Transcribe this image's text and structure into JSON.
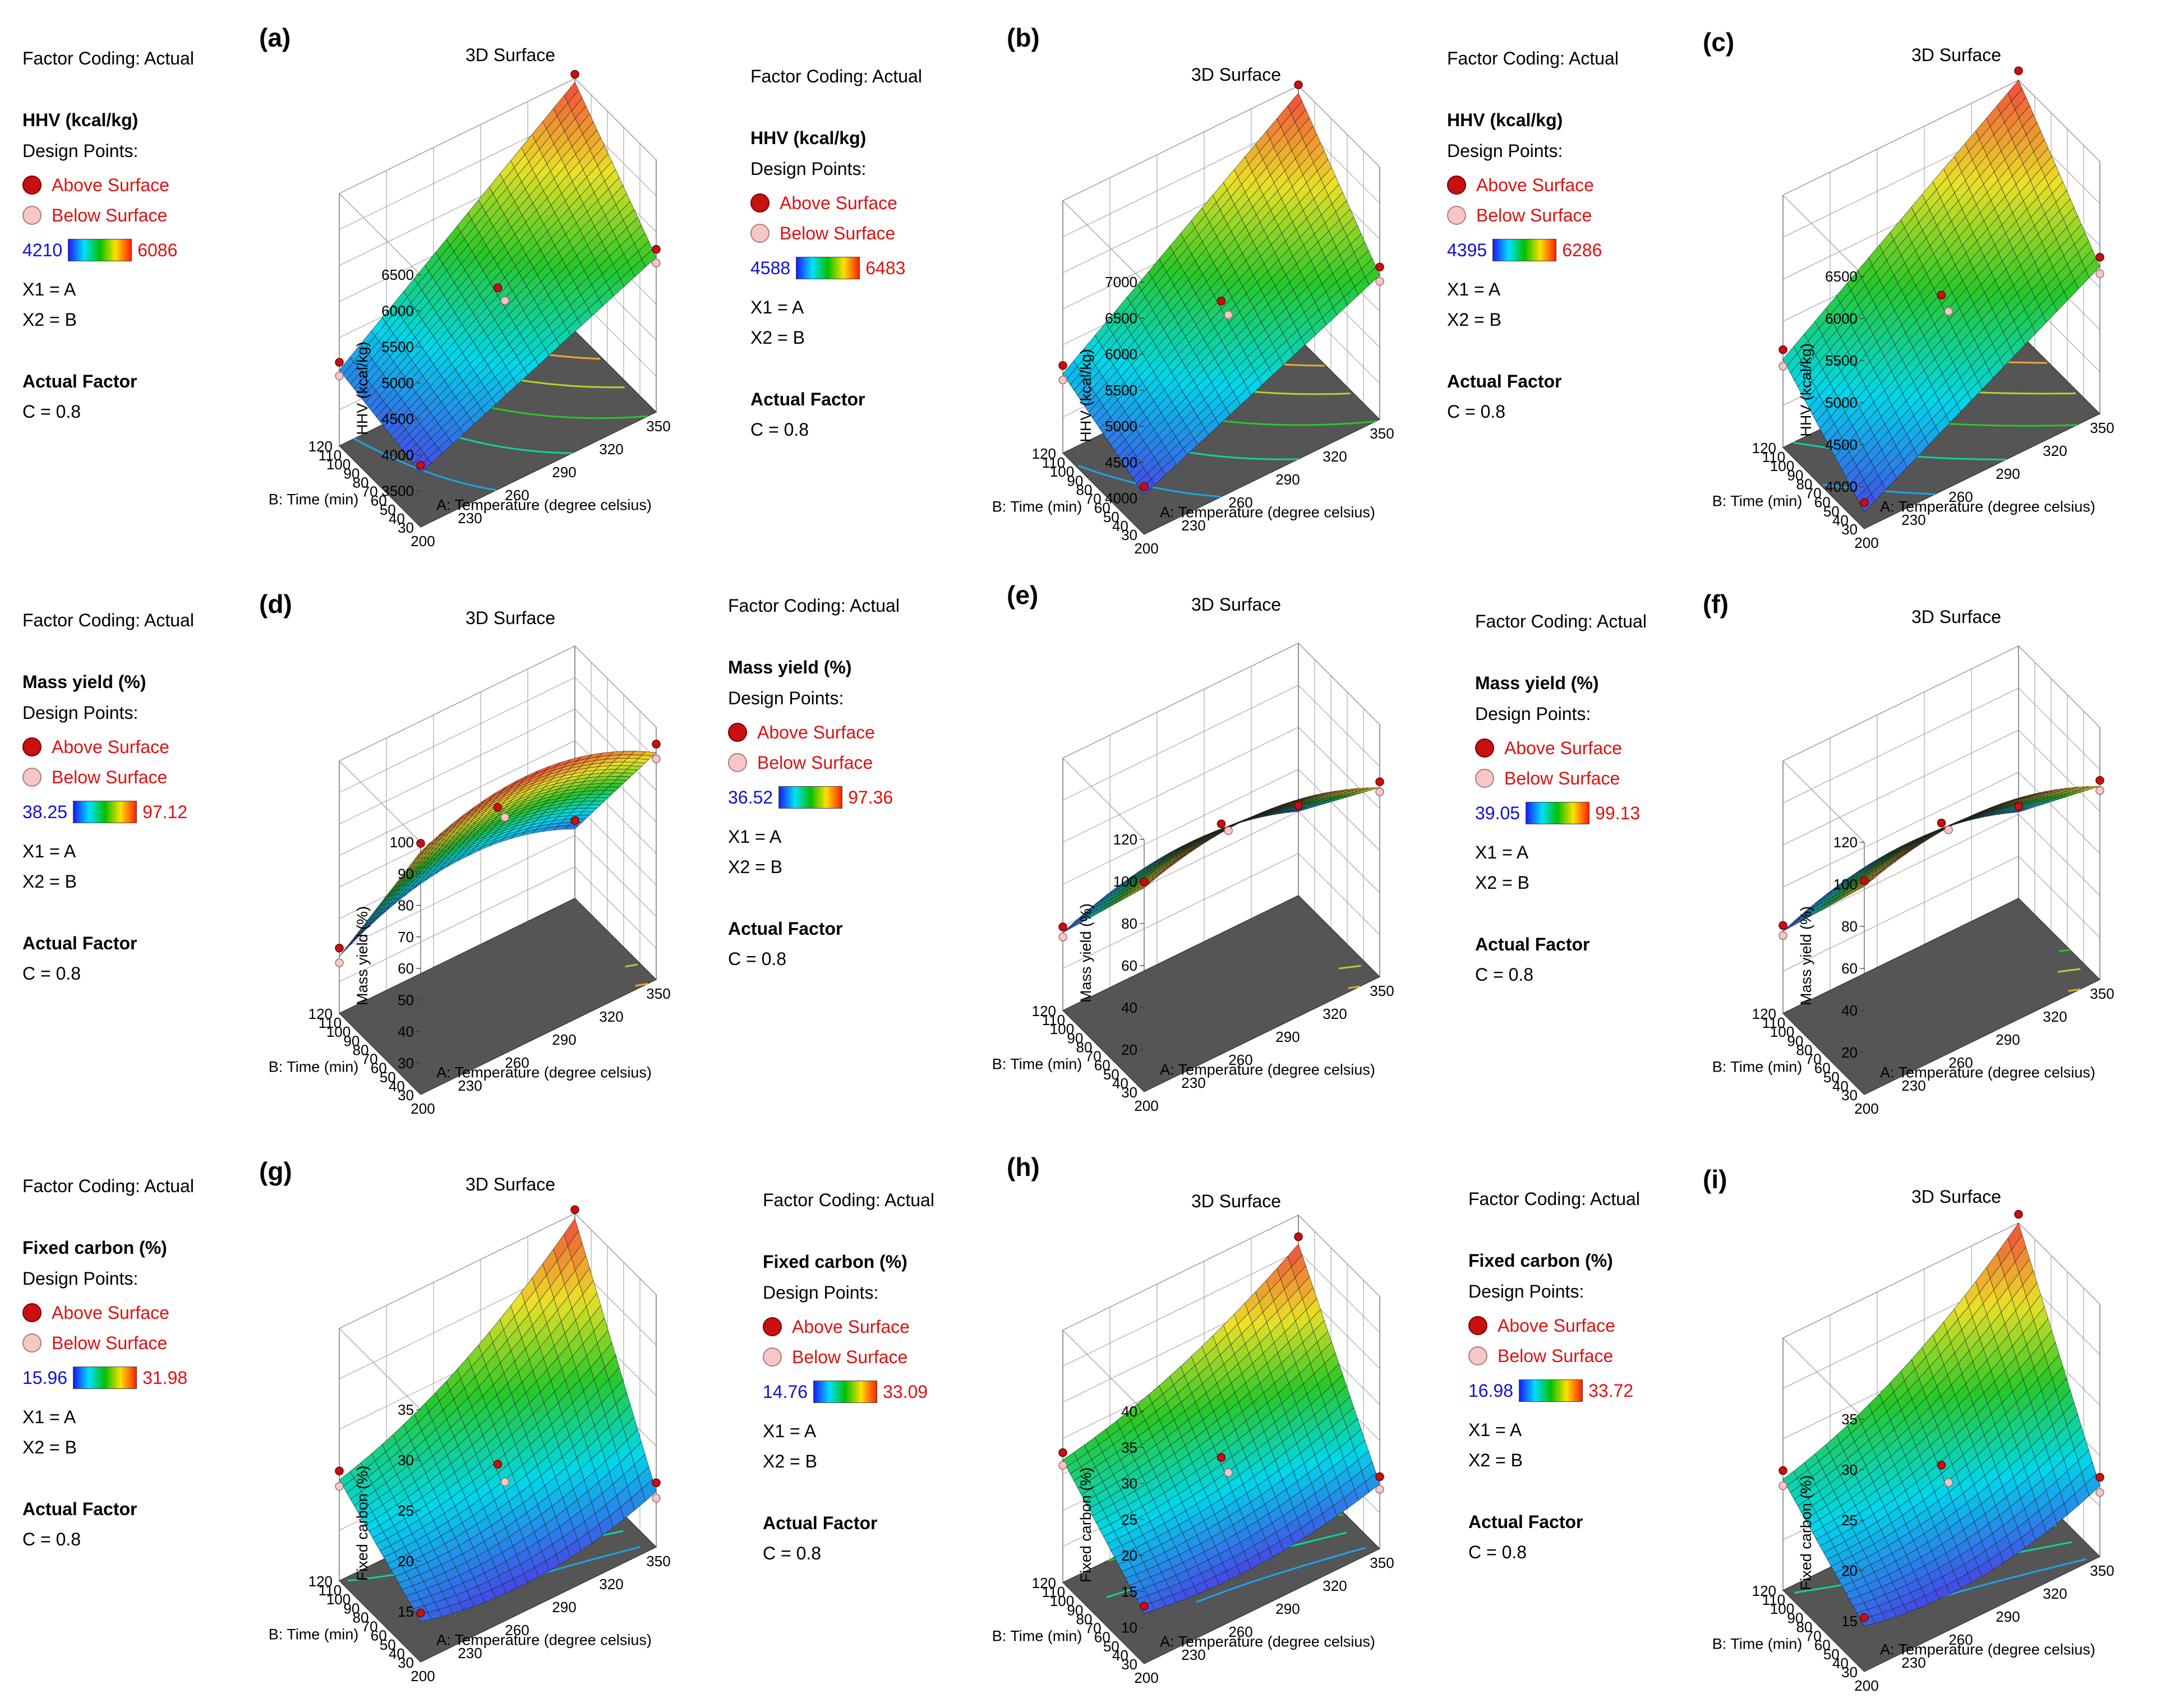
{
  "shared": {
    "factor_coding": "Factor Coding: Actual",
    "design_points": "Design Points:",
    "above_surface": "Above Surface",
    "below_surface": "Below Surface",
    "x1": "X1 = A",
    "x2": "X2 = B",
    "actual_factor": "Actual Factor",
    "c_value": "C = 0.8",
    "surface_title": "3D Surface"
  },
  "colors": {
    "above": "#c81010",
    "below": "#f6c7c7",
    "min_text": "#1010d8",
    "max_text": "#e01010",
    "floor": "#555555"
  },
  "chart_data": [
    {
      "id": "a",
      "type": "surface3d",
      "panel_label": "(a)",
      "title": "3D Surface",
      "response": "HHV (kcal/kg)",
      "zlabel": "HHV (kcal/kg)",
      "xlabel": "A: Temperature (degree celsius)",
      "ylabel": "B: Time (min)",
      "x_ticks": [
        "200",
        "230",
        "260",
        "290",
        "320",
        "350"
      ],
      "y_ticks": [
        "30",
        "40",
        "50",
        "60",
        "70",
        "80",
        "90",
        "100",
        "110",
        "120"
      ],
      "z_ticks": [
        "3500",
        "4000",
        "4500",
        "5000",
        "5500",
        "6000",
        "6500"
      ],
      "zlim": [
        3000,
        6500
      ],
      "color_min": "4210",
      "color_max": "6086",
      "corners": [
        3750,
        4050,
        5150,
        6450
      ],
      "curvature": 0
    },
    {
      "id": "b",
      "type": "surface3d",
      "panel_label": "(b)",
      "title": "3D Surface",
      "response": "HHV (kcal/kg)",
      "zlabel": "HHV (kcal/kg)",
      "xlabel": "A: Temperature (degree celsius)",
      "ylabel": "B: Time (min)",
      "x_ticks": [
        "200",
        "230",
        "260",
        "290",
        "320",
        "350"
      ],
      "y_ticks": [
        "30",
        "40",
        "50",
        "60",
        "70",
        "80",
        "90",
        "100",
        "110",
        "120"
      ],
      "z_ticks": [
        "4000",
        "4500",
        "5000",
        "5500",
        "6000",
        "6500",
        "7000"
      ],
      "zlim": [
        3500,
        7000
      ],
      "color_min": "4588",
      "color_max": "6483",
      "corners": [
        4050,
        4600,
        5500,
        6900
      ],
      "curvature": 0
    },
    {
      "id": "c",
      "type": "surface3d",
      "panel_label": "(c)",
      "title": "3D Surface",
      "response": "HHV (kcal/kg)",
      "zlabel": "HHV (kcal/kg)",
      "xlabel": "A: Temperature (degree celsius)",
      "ylabel": "B: Time (min)",
      "x_ticks": [
        "200",
        "230",
        "260",
        "290",
        "320",
        "350"
      ],
      "y_ticks": [
        "30",
        "40",
        "50",
        "60",
        "70",
        "80",
        "90",
        "100",
        "110",
        "120"
      ],
      "z_ticks": [
        "4000",
        "4500",
        "5000",
        "5500",
        "6000",
        "6500"
      ],
      "zlim": [
        3500,
        6500
      ],
      "color_min": "4395",
      "color_max": "6286",
      "corners": [
        3700,
        4550,
        5250,
        6500
      ],
      "curvature": 0
    },
    {
      "id": "d",
      "type": "surface3d",
      "panel_label": "(d)",
      "title": "3D Surface",
      "response": "Mass yield (%)",
      "zlabel": "Mass yield (%)",
      "xlabel": "A: Temperature (degree celsius)",
      "ylabel": "B: Time (min)",
      "x_ticks": [
        "200",
        "230",
        "260",
        "290",
        "320",
        "350"
      ],
      "y_ticks": [
        "30",
        "40",
        "50",
        "60",
        "70",
        "80",
        "90",
        "100",
        "110",
        "120"
      ],
      "z_ticks": [
        "30",
        "40",
        "50",
        "60",
        "70",
        "80",
        "90",
        "100"
      ],
      "zlim": [
        20,
        100
      ],
      "color_min": "38.25",
      "color_max": "97.12",
      "corners": [
        97,
        38,
        92,
        42
      ],
      "curvature": 10
    },
    {
      "id": "e",
      "type": "surface3d",
      "panel_label": "(e)",
      "title": "3D Surface",
      "response": "Mass yield (%)",
      "zlabel": "Mass yield (%)",
      "xlabel": "A: Temperature (degree celsius)",
      "ylabel": "B: Time (min)",
      "x_ticks": [
        "200",
        "230",
        "260",
        "290",
        "320",
        "350"
      ],
      "y_ticks": [
        "30",
        "40",
        "50",
        "60",
        "70",
        "80",
        "90",
        "100",
        "110",
        "120"
      ],
      "z_ticks": [
        "20",
        "40",
        "60",
        "80",
        "100",
        "120"
      ],
      "zlim": [
        0,
        120
      ],
      "color_min": "36.52",
      "color_max": "97.36",
      "corners": [
        97,
        37,
        90,
        40
      ],
      "curvature": 12
    },
    {
      "id": "f",
      "type": "surface3d",
      "panel_label": "(f)",
      "title": "3D Surface",
      "response": "Mass yield (%)",
      "zlabel": "Mass yield (%)",
      "xlabel": "A: Temperature (degree celsius)",
      "ylabel": "B: Time (min)",
      "x_ticks": [
        "200",
        "230",
        "260",
        "290",
        "320",
        "350"
      ],
      "y_ticks": [
        "30",
        "40",
        "50",
        "60",
        "70",
        "80",
        "90",
        "100",
        "110",
        "120"
      ],
      "z_ticks": [
        "20",
        "40",
        "60",
        "80",
        "100",
        "120"
      ],
      "zlim": [
        0,
        120
      ],
      "color_min": "39.05",
      "color_max": "99.13",
      "corners": [
        99,
        39,
        92,
        41
      ],
      "curvature": 12
    },
    {
      "id": "g",
      "type": "surface3d",
      "panel_label": "(g)",
      "title": "3D Surface",
      "response": "Fixed carbon (%)",
      "zlabel": "Fixed carbon (%)",
      "xlabel": "A: Temperature (degree celsius)",
      "ylabel": "B: Time (min)",
      "x_ticks": [
        "200",
        "230",
        "260",
        "290",
        "320",
        "350"
      ],
      "y_ticks": [
        "30",
        "40",
        "50",
        "60",
        "70",
        "80",
        "90",
        "100",
        "110",
        "120"
      ],
      "z_ticks": [
        "15",
        "20",
        "25",
        "30",
        "35"
      ],
      "zlim": [
        10,
        35
      ],
      "color_min": "15.96",
      "color_max": "31.98",
      "corners": [
        14,
        20,
        15.5,
        34.5
      ],
      "curvature": -2
    },
    {
      "id": "h",
      "type": "surface3d",
      "panel_label": "(h)",
      "title": "3D Surface",
      "response": "Fixed carbon (%)",
      "zlabel": "Fixed carbon (%)",
      "xlabel": "A: Temperature (degree celsius)",
      "ylabel": "B: Time (min)",
      "x_ticks": [
        "200",
        "230",
        "260",
        "290",
        "320",
        "350"
      ],
      "y_ticks": [
        "30",
        "40",
        "50",
        "60",
        "70",
        "80",
        "90",
        "100",
        "110",
        "120"
      ],
      "z_ticks": [
        "10",
        "15",
        "20",
        "25",
        "30",
        "35",
        "40"
      ],
      "zlim": [
        5,
        40
      ],
      "color_min": "14.76",
      "color_max": "33.09",
      "corners": [
        12,
        22,
        14,
        36
      ],
      "curvature": -2
    },
    {
      "id": "i",
      "type": "surface3d",
      "panel_label": "(i)",
      "title": "3D Surface",
      "response": "Fixed carbon (%)",
      "zlabel": "Fixed carbon (%)",
      "xlabel": "A: Temperature (degree celsius)",
      "ylabel": "B: Time (min)",
      "x_ticks": [
        "200",
        "230",
        "260",
        "290",
        "320",
        "350"
      ],
      "y_ticks": [
        "30",
        "40",
        "50",
        "60",
        "70",
        "80",
        "90",
        "100",
        "110",
        "120"
      ],
      "z_ticks": [
        "15",
        "20",
        "25",
        "30",
        "35"
      ],
      "zlim": [
        10,
        35
      ],
      "color_min": "16.98",
      "color_max": "33.72",
      "corners": [
        14.5,
        21,
        17,
        35
      ],
      "curvature": -2
    }
  ]
}
